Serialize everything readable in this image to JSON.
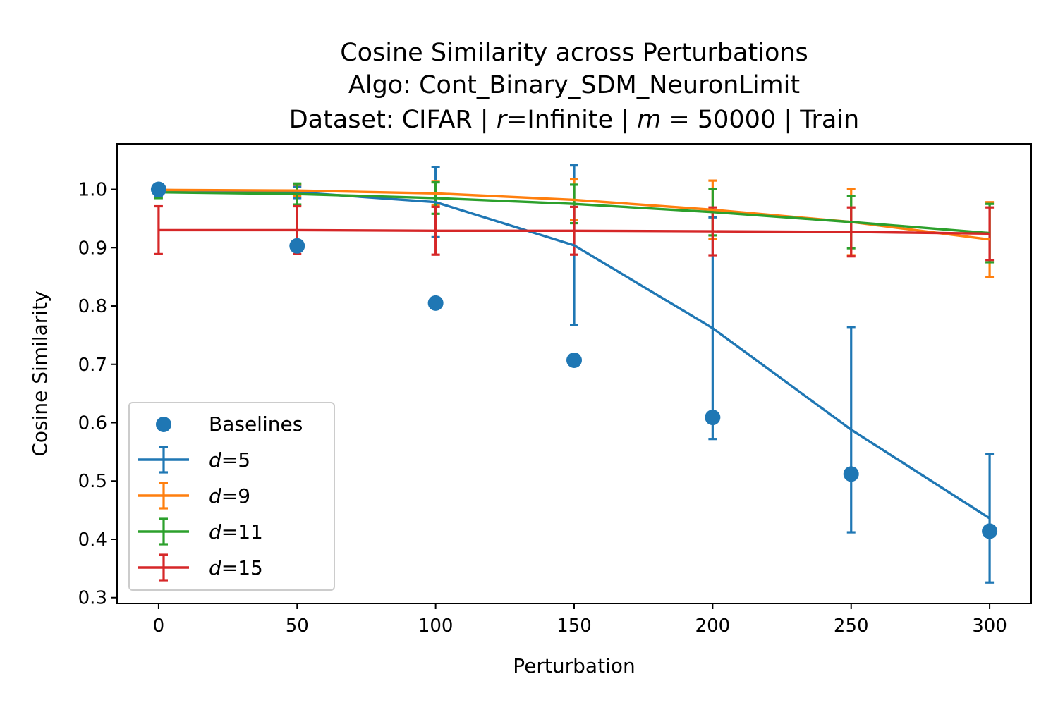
{
  "chart_data": {
    "type": "line",
    "title": {
      "line1": "Cosine Similarity across Perturbations",
      "line2": "Algo: Cont_Binary_SDM_NeuronLimit",
      "line3_prefix": "Dataset: CIFAR | ",
      "line3_r": "r",
      "line3_mid": "=Infinite | ",
      "line3_m": "m",
      "line3_suffix": " = 50000 | Train"
    },
    "xlabel": "Perturbation",
    "ylabel": "Cosine Similarity",
    "xlim": [
      -15,
      315
    ],
    "ylim": [
      0.29,
      1.078
    ],
    "xticks": [
      "0",
      "50",
      "100",
      "150",
      "200",
      "250",
      "300"
    ],
    "yticks": [
      "0.3",
      "0.4",
      "0.5",
      "0.6",
      "0.7",
      "0.8",
      "0.9",
      "1.0"
    ],
    "x": [
      0,
      50,
      100,
      150,
      200,
      250,
      300
    ],
    "legend_location": "lower-left",
    "colors": {
      "baselines": "#1f77b4",
      "d5": "#1f77b4",
      "d9": "#ff7f0e",
      "d11": "#2ca02c",
      "d15": "#d62728"
    },
    "baselines": {
      "name": "Baselines",
      "values": [
        1.0,
        0.903,
        0.805,
        0.707,
        0.609,
        0.512,
        0.414
      ]
    },
    "series": [
      {
        "name_var": "d",
        "name_val": "=5",
        "color": "#1f77b4",
        "values": [
          0.999,
          0.995,
          0.978,
          0.904,
          0.762,
          0.588,
          0.436
        ],
        "err": [
          0.01,
          0.01,
          0.06,
          0.137,
          0.19,
          0.176,
          0.11
        ]
      },
      {
        "name_var": "d",
        "name_val": "=9",
        "color": "#ff7f0e",
        "values": [
          0.999,
          0.998,
          0.993,
          0.982,
          0.965,
          0.944,
          0.914
        ],
        "err": [
          0.005,
          0.01,
          0.02,
          0.035,
          0.05,
          0.057,
          0.064
        ]
      },
      {
        "name_var": "d",
        "name_val": "=11",
        "color": "#2ca02c",
        "values": [
          0.995,
          0.992,
          0.985,
          0.975,
          0.961,
          0.944,
          0.925
        ],
        "err": [
          0.01,
          0.018,
          0.027,
          0.033,
          0.04,
          0.045,
          0.05
        ]
      },
      {
        "name_var": "d",
        "name_val": "=15",
        "color": "#d62728",
        "values": [
          0.93,
          0.93,
          0.929,
          0.929,
          0.928,
          0.927,
          0.924
        ],
        "err": [
          0.041,
          0.041,
          0.041,
          0.041,
          0.041,
          0.042,
          0.045
        ]
      }
    ]
  }
}
